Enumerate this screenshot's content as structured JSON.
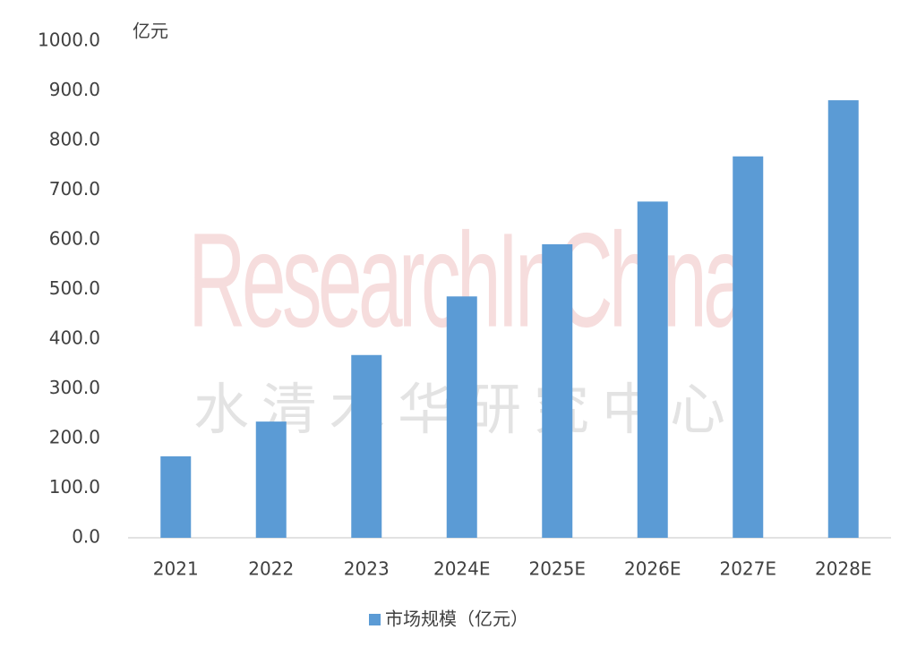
{
  "chart_data": {
    "type": "bar",
    "unit_label": "亿元",
    "watermark": {
      "en": "ResearchInChina",
      "zh": "水清木华研究中心"
    },
    "categories": [
      "2021",
      "2022",
      "2023",
      "2024E",
      "2025E",
      "2026E",
      "2027E",
      "2028E"
    ],
    "series": [
      {
        "name": "市场规模（亿元）",
        "color": "#5b9bd5",
        "values": [
          164,
          234,
          368,
          486,
          591,
          677,
          768,
          881
        ]
      }
    ],
    "ylim": [
      0,
      1000
    ],
    "yticks": [
      {
        "value": 0,
        "label": "0.0"
      },
      {
        "value": 100,
        "label": "100.0"
      },
      {
        "value": 200,
        "label": "200.0"
      },
      {
        "value": 300,
        "label": "300.0"
      },
      {
        "value": 400,
        "label": "400.0"
      },
      {
        "value": 500,
        "label": "500.0"
      },
      {
        "value": 600,
        "label": "600.0"
      },
      {
        "value": 700,
        "label": "700.0"
      },
      {
        "value": 800,
        "label": "800.0"
      },
      {
        "value": 900,
        "label": "900.0"
      },
      {
        "value": 1000,
        "label": "1000.0"
      }
    ],
    "grid": false,
    "legend": "bottom"
  }
}
